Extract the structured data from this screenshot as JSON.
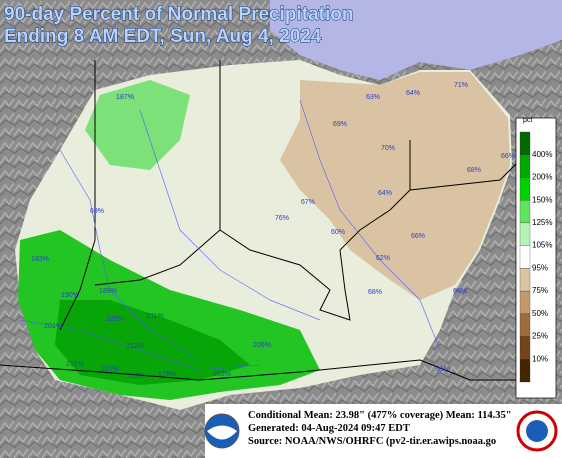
{
  "title_lines": [
    "90-day Percent of Normal Precipitation",
    "Ending 8 AM EDT, Sun, Aug 4, 2024"
  ],
  "legend": {
    "title": "pct",
    "labels": [
      "400%",
      "200%",
      "150%",
      "125%",
      "105%",
      "95%",
      "75%",
      "50%",
      "25%",
      "10%"
    ],
    "colors": [
      "#006a00",
      "#00a800",
      "#00d200",
      "#5ee65e",
      "#b6f3b6",
      "#ffffff",
      "#dcc4a2",
      "#c39a6c",
      "#9c6c3a",
      "#734418",
      "#452400"
    ]
  },
  "map_labels": [
    "187%",
    "63%",
    "64%",
    "71%",
    "69%",
    "70%",
    "66%",
    "68%",
    "64%",
    "67%",
    "69%",
    "76%",
    "60%",
    "66%",
    "62%",
    "183%",
    "68%",
    "66%",
    "190%",
    "189%",
    "211%",
    "225%",
    "201%",
    "212%",
    "206%",
    "231%",
    "227%",
    "213%",
    "178%",
    "203%",
    "91%"
  ],
  "info": [
    "Conditional Mean: 23.98\" (477% coverage)  Mean: 114.35\"",
    "Generated: 04-Aug-2024 09:47 EDT",
    "Source: NOAA/NWS/OHRFC (pv2-tir.er.awips.noaa.go"
  ]
}
